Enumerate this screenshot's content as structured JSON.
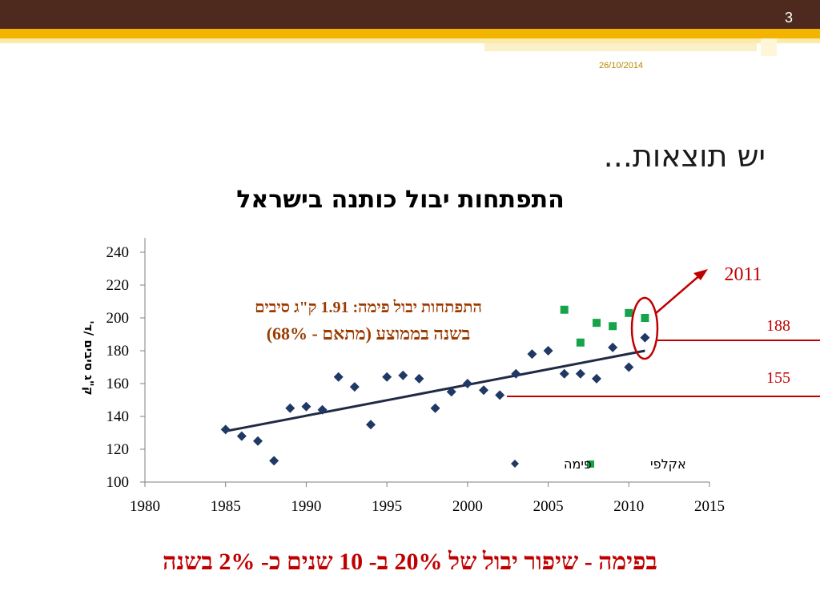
{
  "slide": {
    "page_number": "3",
    "date": "26/10/2014",
    "title": "יש תוצאות..."
  },
  "footer_text": "בפימה - שיפור יבול של 20% ב- 10 שנים כ- 2% בשנה",
  "colors": {
    "pima": "#1f3864",
    "acala": "#17a34a",
    "trend": "#1f2a44",
    "highlight": "#c00000",
    "annotation": "#9c3b00"
  },
  "chart_data": {
    "type": "scatter",
    "title": "התפתחות יבול כותנה בישראל",
    "ylabel": "ק\"ג סיבים /ד'",
    "xlabel": "",
    "xlim": [
      1980,
      2015
    ],
    "ylim": [
      100,
      240
    ],
    "x_ticks": [
      1980,
      1985,
      1990,
      1995,
      2000,
      2005,
      2010,
      2015
    ],
    "y_ticks": [
      100,
      120,
      140,
      160,
      180,
      200,
      220,
      240
    ],
    "grid": false,
    "legend_position": "bottom-right",
    "series": [
      {
        "name": "פימה",
        "marker": "diamond",
        "color": "#1f3864",
        "x": [
          1985,
          1986,
          1987,
          1988,
          1989,
          1990,
          1991,
          1992,
          1993,
          1994,
          1995,
          1996,
          1997,
          1998,
          1999,
          2000,
          2001,
          2002,
          2003,
          2004,
          2005,
          2006,
          2007,
          2008,
          2009,
          2010,
          2011
        ],
        "y": [
          132,
          128,
          125,
          113,
          145,
          146,
          144,
          164,
          158,
          135,
          164,
          165,
          163,
          145,
          155,
          160,
          156,
          153,
          166,
          178,
          180,
          166,
          166,
          163,
          182,
          170,
          188
        ]
      },
      {
        "name": "אקלפי",
        "marker": "square",
        "color": "#17a34a",
        "x": [
          2006,
          2007,
          2008,
          2009,
          2010,
          2011
        ],
        "y": [
          205,
          185,
          197,
          195,
          203,
          200
        ]
      }
    ],
    "trendline": {
      "series": "פימה",
      "x": [
        1985,
        2011
      ],
      "y": [
        131,
        180
      ]
    },
    "annotations": {
      "trend_text_line1": "התפתחות יבול פימה: 1.91 ק\"ג סיבים",
      "trend_text_line2": "בשנה בממוצע (מתאם - 68%)",
      "highlight_year": "2011",
      "value_high": "188",
      "value_low": "155"
    }
  }
}
